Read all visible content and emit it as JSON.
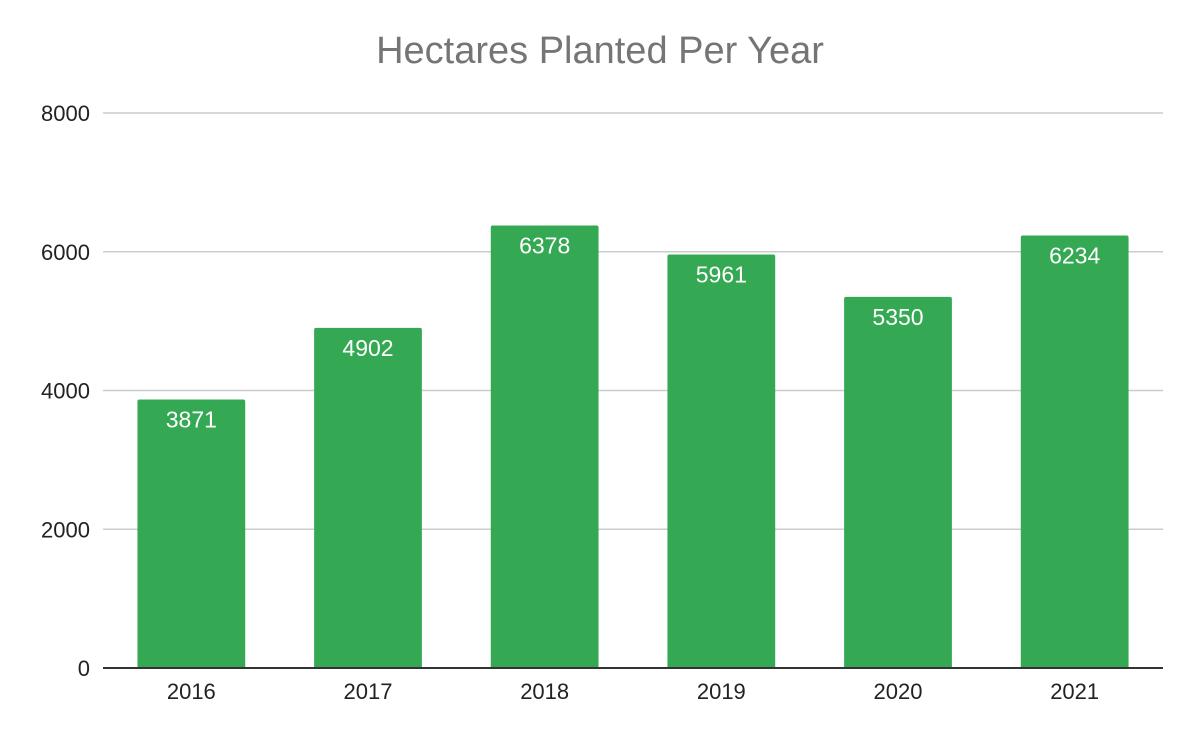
{
  "chart_data": {
    "type": "bar",
    "title": "Hectares Planted Per Year",
    "xlabel": "",
    "ylabel": "",
    "categories": [
      "2016",
      "2017",
      "2018",
      "2019",
      "2020",
      "2021"
    ],
    "values": [
      3871,
      4902,
      6378,
      5961,
      5350,
      6234
    ],
    "ylim": [
      0,
      8000
    ],
    "yticks": [
      0,
      2000,
      4000,
      6000,
      8000
    ],
    "grid": true,
    "legend": "none",
    "data_labels": true,
    "colors": {
      "bar": "#34a853",
      "title": "#757575",
      "grid": "#cccccc",
      "axis": "#333333",
      "data_label": "#ffffff"
    }
  }
}
